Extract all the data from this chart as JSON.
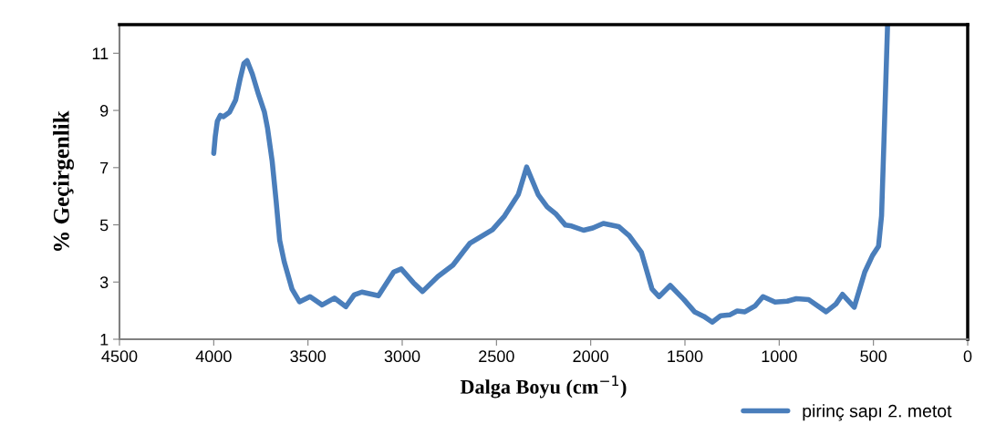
{
  "chart_data": {
    "type": "line",
    "xlabel": "Dalga Boyu (cm$^{−1}$)",
    "ylabel": "% Geçirgenlik",
    "xlim": [
      4500,
      0
    ],
    "xticks": [
      4500,
      4000,
      3500,
      3000,
      2500,
      2000,
      1500,
      1000,
      500,
      0
    ],
    "ylim": [
      1,
      12
    ],
    "yticks": [
      1,
      3,
      5,
      7,
      9,
      11
    ],
    "grid": false,
    "legend": "bottom right",
    "marker": "none",
    "line_style": "solid",
    "series": [
      {
        "name": "pirinç sapı 2. metot",
        "color": "#4a7ebb",
        "x": [
          4000,
          3992,
          3981,
          3965,
          3949,
          3916,
          3884,
          3860,
          3840,
          3823,
          3795,
          3763,
          3731,
          3715,
          3690,
          3669,
          3650,
          3626,
          3585,
          3545,
          3489,
          3425,
          3360,
          3299,
          3255,
          3214,
          3126,
          3045,
          3005,
          2941,
          2892,
          2811,
          2731,
          2642,
          2521,
          2457,
          2384,
          2340,
          2279,
          2231,
          2183,
          2134,
          2102,
          2038,
          1989,
          1933,
          1852,
          1796,
          1731,
          1675,
          1637,
          1578,
          1506,
          1449,
          1400,
          1355,
          1311,
          1263,
          1223,
          1182,
          1127,
          1086,
          1022,
          957,
          909,
          844,
          751,
          699,
          664,
          602,
          546,
          505,
          473,
          457,
          444,
          425
        ],
        "values": [
          7.5,
          8.08,
          8.62,
          8.83,
          8.78,
          8.94,
          9.36,
          10.1,
          10.64,
          10.74,
          10.27,
          9.57,
          8.94,
          8.4,
          7.23,
          5.84,
          4.46,
          3.71,
          2.76,
          2.31,
          2.49,
          2.2,
          2.44,
          2.14,
          2.55,
          2.65,
          2.52,
          3.35,
          3.46,
          2.98,
          2.67,
          3.19,
          3.59,
          4.35,
          4.83,
          5.31,
          6.06,
          7.02,
          6.06,
          5.63,
          5.37,
          4.99,
          4.96,
          4.81,
          4.89,
          5.05,
          4.94,
          4.62,
          4.04,
          2.76,
          2.49,
          2.88,
          2.39,
          1.96,
          1.8,
          1.6,
          1.82,
          1.85,
          1.99,
          1.96,
          2.17,
          2.49,
          2.3,
          2.33,
          2.42,
          2.39,
          1.96,
          2.23,
          2.57,
          2.12,
          3.35,
          3.93,
          4.25,
          5.31,
          7.98,
          12.0
        ]
      }
    ]
  }
}
